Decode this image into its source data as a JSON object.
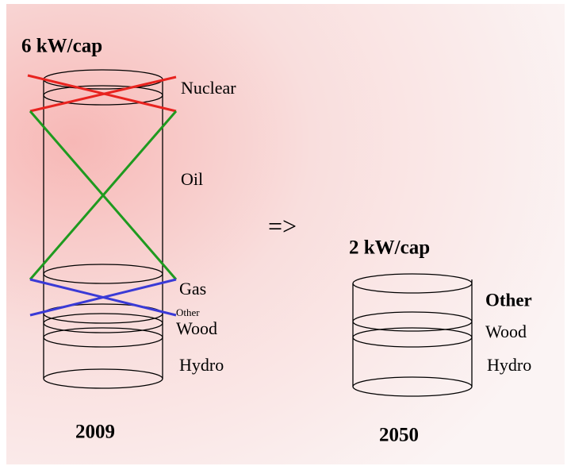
{
  "left": {
    "title": "6 kW/cap",
    "labels": [
      "Nuclear",
      "Oil",
      "Gas",
      "Other",
      "Wood",
      "Hydro"
    ],
    "year": "2009"
  },
  "arrow": "=>",
  "right": {
    "title": "2 kW/cap",
    "labels": [
      "Other",
      "Wood",
      "Hydro"
    ],
    "year": "2050"
  }
}
